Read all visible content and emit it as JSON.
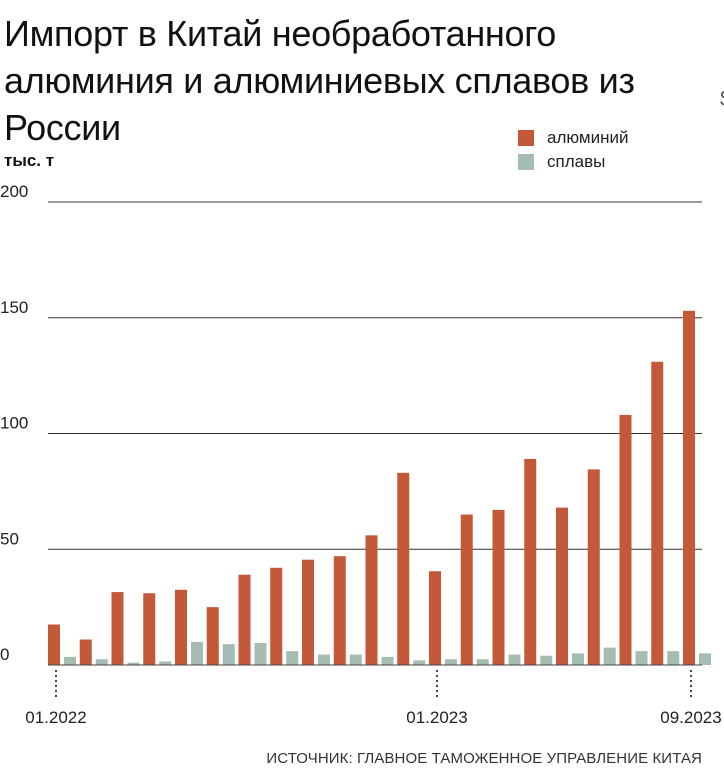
{
  "chart_data": {
    "type": "bar",
    "title": "Импорт в Китай необработанного алюминия и алюминиевых сплавов из России",
    "ylabel": "тыс. т",
    "xlabel": "",
    "ylim": [
      0,
      200
    ],
    "yticks": [
      0,
      50,
      100,
      150,
      200
    ],
    "ytick_labels": [
      "0",
      "50",
      "100",
      "150",
      "200"
    ],
    "grid": true,
    "legend_position": "top-right",
    "categories": [
      "01.2022",
      "02.2022",
      "03.2022",
      "04.2022",
      "05.2022",
      "06.2022",
      "07.2022",
      "08.2022",
      "09.2022",
      "10.2022",
      "11.2022",
      "12.2022",
      "01.2023",
      "02.2023",
      "03.2023",
      "04.2023",
      "05.2023",
      "06.2023",
      "07.2023",
      "08.2023",
      "09.2023"
    ],
    "xtick_labels": [
      {
        "index": 0,
        "label": "01.2022"
      },
      {
        "index": 12,
        "label": "01.2023"
      },
      {
        "index": 20,
        "label": "09.2023"
      }
    ],
    "series": [
      {
        "name": "алюминий",
        "color": "#c4593a",
        "values": [
          17.5,
          11,
          31.5,
          31,
          32.5,
          25,
          39,
          42,
          45.5,
          47,
          56,
          83,
          40.5,
          65,
          67,
          89,
          68,
          84.5,
          108,
          131,
          153
        ]
      },
      {
        "name": "сплавы",
        "color": "#a4bcb2",
        "values": [
          3.5,
          2.5,
          1,
          1.5,
          10,
          9,
          9.5,
          6,
          4.5,
          4.5,
          3.5,
          2,
          2.5,
          2.5,
          4.5,
          4,
          5,
          7.5,
          6,
          6,
          5
        ]
      }
    ],
    "source": "ИСТОЧНИК: ГЛАВНОЕ ТАМОЖЕННОЕ УПРАВЛЕНИЕ КИТАЯ"
  },
  "edge_mark": "$"
}
